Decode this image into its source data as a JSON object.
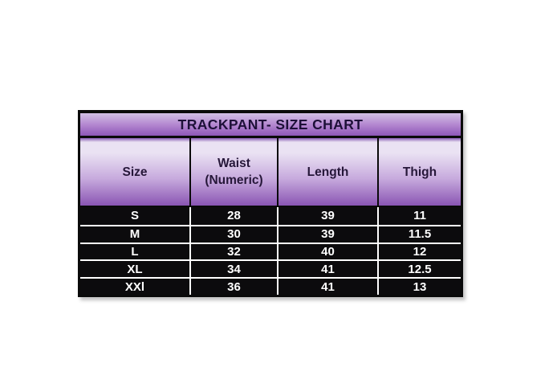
{
  "theme": {
    "canvas_bg": "#ffffff",
    "border_color": "#0a0a0a",
    "title_text_color": "#1d1038",
    "header_text_color": "#261739",
    "data_text_color": "#ffffff",
    "data_row_bg": "#0c0b0d",
    "grid_line_color": "#ffffff",
    "title_gradient_top": "#d2c0e5",
    "title_gradient_mid": "#b386d0",
    "title_gradient_bottom": "#8d57b7",
    "header_gradient_edge": "#8a5eb5",
    "header_gradient_top": "#eae2f3",
    "header_gradient_mid": "#c7aadd",
    "header_gradient_bottom": "#8a55b3"
  },
  "chart_data": {
    "type": "table",
    "title": "TRACKPANT- SIZE CHART",
    "columns": [
      {
        "label": "Size",
        "sublabel": ""
      },
      {
        "label": "Waist",
        "sublabel": "(Numeric)"
      },
      {
        "label": "Length",
        "sublabel": ""
      },
      {
        "label": "Thigh",
        "sublabel": ""
      }
    ],
    "rows": [
      {
        "size": "S",
        "waist": "28",
        "length": "39",
        "thigh": "11"
      },
      {
        "size": "M",
        "waist": "30",
        "length": "39",
        "thigh": "11.5"
      },
      {
        "size": "L",
        "waist": "32",
        "length": "40",
        "thigh": "12"
      },
      {
        "size": "XL",
        "waist": "34",
        "length": "41",
        "thigh": "12.5"
      },
      {
        "size": "XXl",
        "waist": "36",
        "length": "41",
        "thigh": "13"
      }
    ]
  }
}
